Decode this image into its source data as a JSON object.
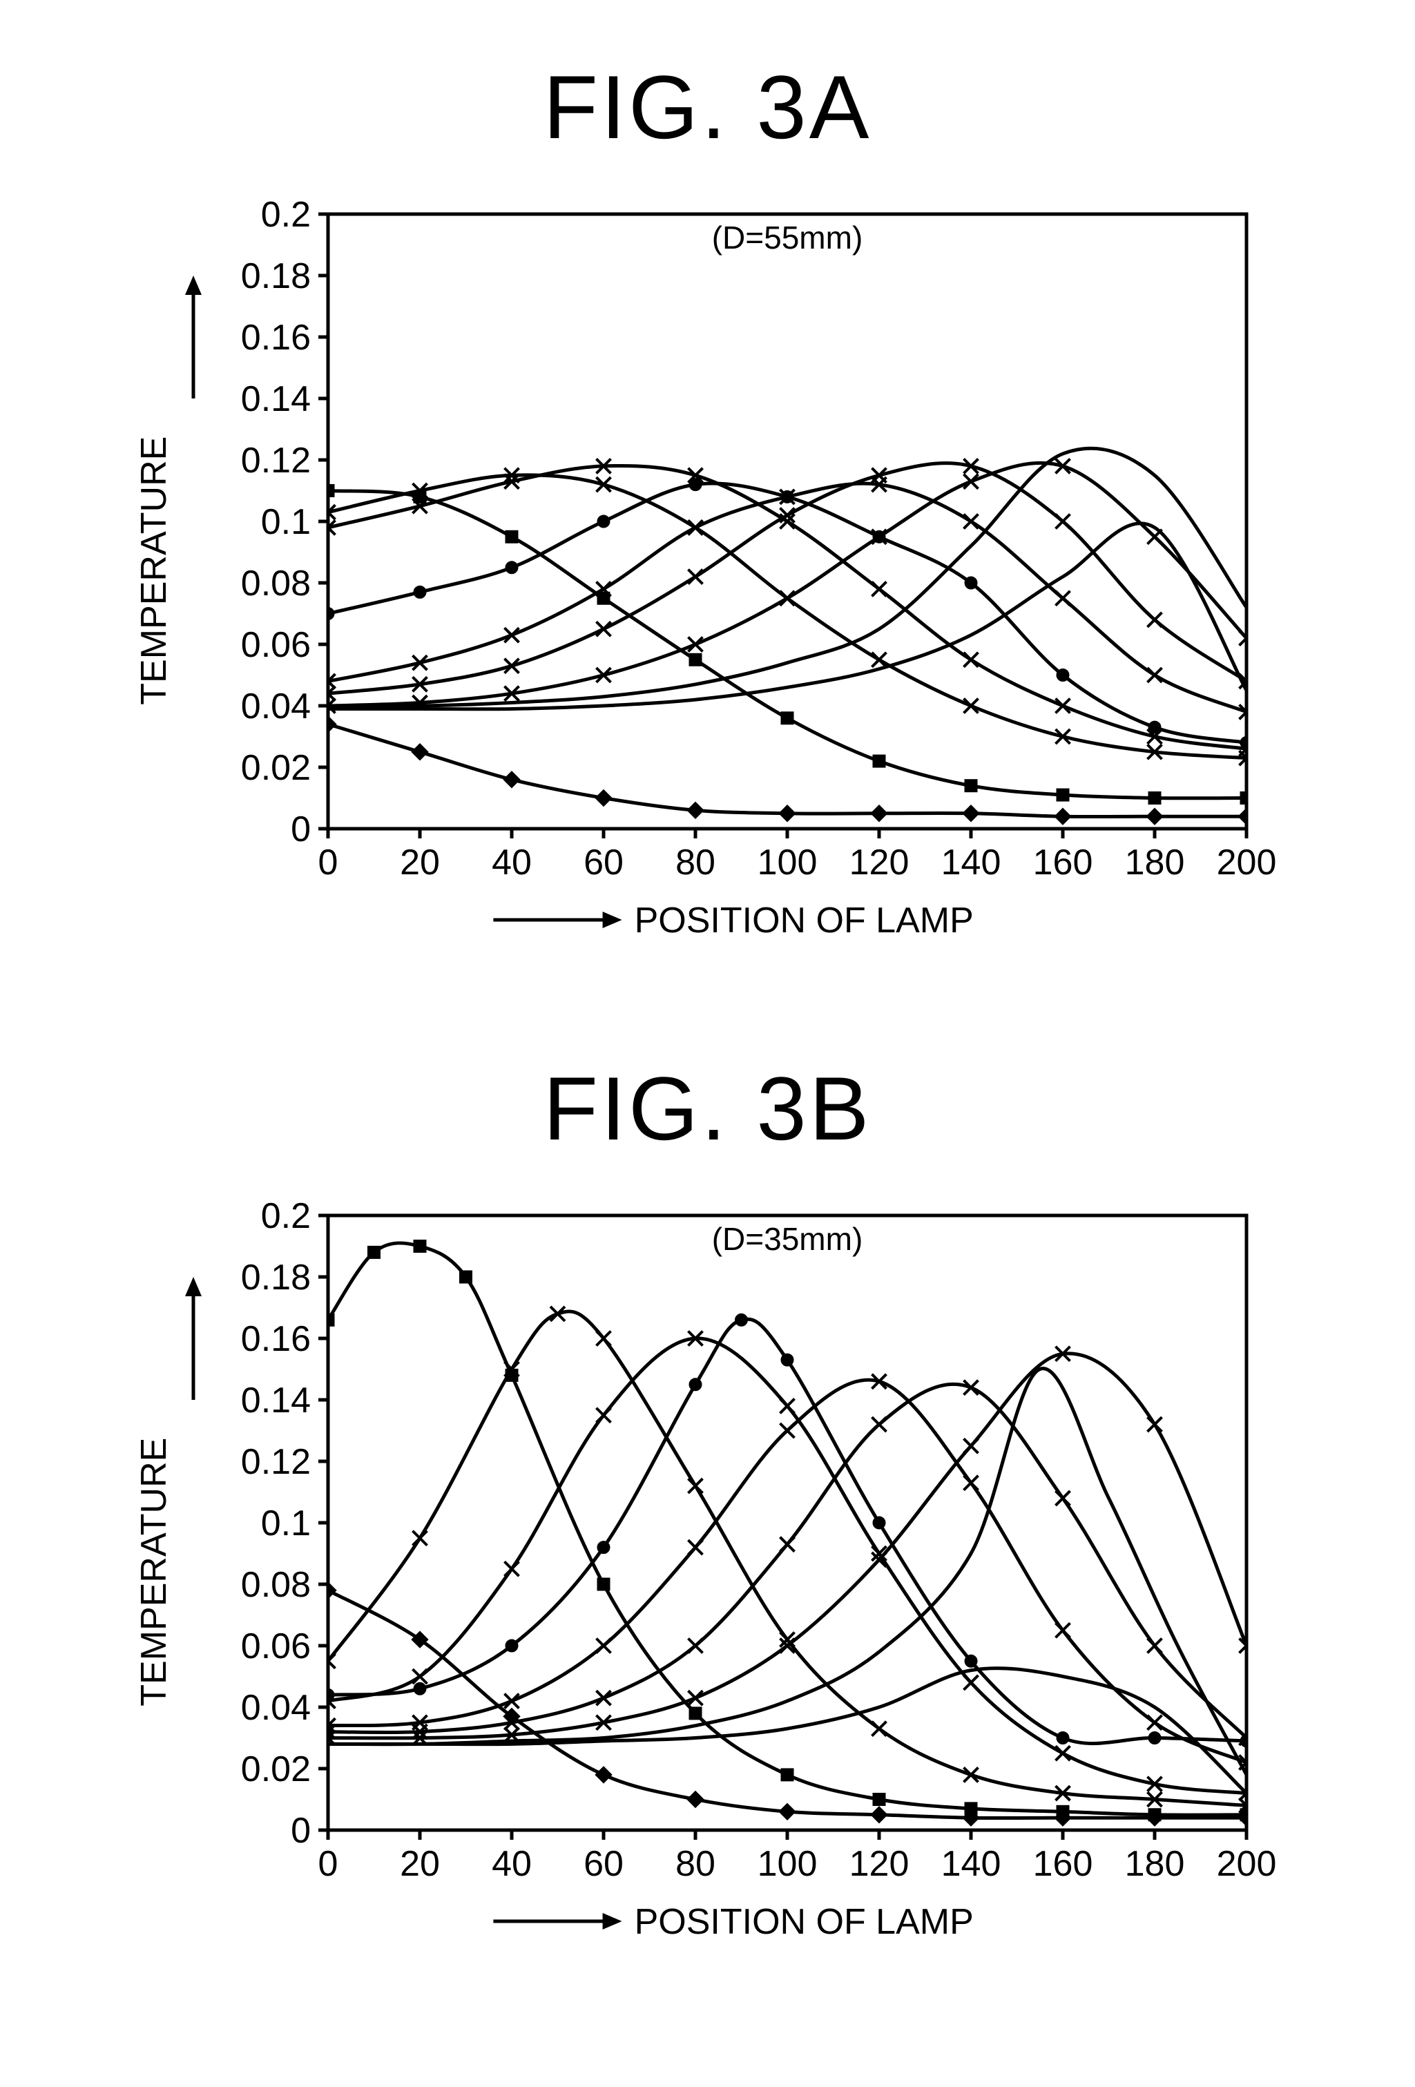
{
  "figures": [
    {
      "id": "fig3a",
      "title": "FIG. 3A",
      "annotation": "(D=55mm)",
      "annotation_fontsize": 46,
      "xlabel": "POSITION OF LAMP",
      "ylabel": "TEMPERATURE",
      "label_fontsize": 52,
      "tick_fontsize": 52,
      "xlim": [
        0,
        200
      ],
      "ylim": [
        0,
        0.2
      ],
      "xtick_step": 20,
      "ytick_step": 0.02,
      "line_color": "#000000",
      "axis_color": "#000000",
      "background_color": "#ffffff",
      "line_width": 5,
      "axis_width": 5,
      "marker_size": 15,
      "series": [
        {
          "marker": "diamond",
          "x": [
            0,
            20,
            40,
            60,
            80,
            100,
            120,
            140,
            160,
            180,
            200
          ],
          "y": [
            0.034,
            0.025,
            0.016,
            0.01,
            0.006,
            0.005,
            0.005,
            0.005,
            0.004,
            0.004,
            0.004
          ]
        },
        {
          "marker": "square",
          "x": [
            0,
            20,
            40,
            60,
            80,
            100,
            120,
            140,
            160,
            180,
            200
          ],
          "y": [
            0.11,
            0.108,
            0.095,
            0.075,
            0.055,
            0.036,
            0.022,
            0.014,
            0.011,
            0.01,
            0.01
          ]
        },
        {
          "marker": "x",
          "x": [
            0,
            20,
            40,
            60,
            80,
            100,
            120,
            140,
            160,
            180,
            200
          ],
          "y": [
            0.103,
            0.11,
            0.115,
            0.112,
            0.098,
            0.075,
            0.055,
            0.04,
            0.03,
            0.025,
            0.023
          ]
        },
        {
          "marker": "x",
          "x": [
            0,
            20,
            40,
            60,
            80,
            100,
            120,
            140,
            160,
            180,
            200
          ],
          "y": [
            0.098,
            0.105,
            0.113,
            0.118,
            0.115,
            0.1,
            0.078,
            0.055,
            0.04,
            0.03,
            0.026
          ]
        },
        {
          "marker": "circle",
          "x": [
            0,
            20,
            40,
            60,
            80,
            100,
            120,
            140,
            160,
            180,
            200
          ],
          "y": [
            0.07,
            0.077,
            0.085,
            0.1,
            0.112,
            0.108,
            0.095,
            0.08,
            0.05,
            0.033,
            0.028
          ]
        },
        {
          "marker": "x",
          "x": [
            0,
            20,
            40,
            60,
            80,
            100,
            120,
            140,
            160,
            180,
            200
          ],
          "y": [
            0.048,
            0.054,
            0.063,
            0.078,
            0.098,
            0.108,
            0.112,
            0.1,
            0.075,
            0.05,
            0.038
          ]
        },
        {
          "marker": "x",
          "x": [
            0,
            20,
            40,
            60,
            80,
            100,
            120,
            140,
            160,
            180,
            200
          ],
          "y": [
            0.044,
            0.047,
            0.053,
            0.065,
            0.082,
            0.102,
            0.115,
            0.118,
            0.1,
            0.068,
            0.048
          ]
        },
        {
          "marker": "x",
          "x": [
            0,
            20,
            40,
            60,
            80,
            100,
            120,
            140,
            160,
            180,
            200
          ],
          "y": [
            0.04,
            0.041,
            0.044,
            0.05,
            0.06,
            0.075,
            0.095,
            0.113,
            0.118,
            0.095,
            0.062
          ]
        },
        {
          "marker": "none",
          "x": [
            0,
            20,
            40,
            60,
            80,
            100,
            120,
            140,
            160,
            180,
            200
          ],
          "y": [
            0.04,
            0.04,
            0.041,
            0.043,
            0.047,
            0.054,
            0.065,
            0.092,
            0.122,
            0.115,
            0.072
          ]
        },
        {
          "marker": "none",
          "x": [
            0,
            20,
            40,
            60,
            80,
            100,
            120,
            140,
            160,
            180,
            200
          ],
          "y": [
            0.039,
            0.039,
            0.039,
            0.04,
            0.042,
            0.046,
            0.052,
            0.063,
            0.082,
            0.098,
            0.045
          ]
        }
      ]
    },
    {
      "id": "fig3b",
      "title": "FIG. 3B",
      "annotation": "(D=35mm)",
      "annotation_fontsize": 46,
      "xlabel": "POSITION OF LAMP",
      "ylabel": "TEMPERATURE",
      "label_fontsize": 52,
      "tick_fontsize": 52,
      "xlim": [
        0,
        200
      ],
      "ylim": [
        0,
        0.2
      ],
      "xtick_step": 20,
      "ytick_step": 0.02,
      "line_color": "#000000",
      "axis_color": "#000000",
      "background_color": "#ffffff",
      "line_width": 5,
      "axis_width": 5,
      "marker_size": 15,
      "series": [
        {
          "marker": "diamond",
          "x": [
            0,
            20,
            40,
            60,
            80,
            100,
            120,
            140,
            160,
            180,
            200
          ],
          "y": [
            0.078,
            0.062,
            0.037,
            0.018,
            0.01,
            0.006,
            0.005,
            0.004,
            0.004,
            0.004,
            0.004
          ]
        },
        {
          "marker": "square",
          "x": [
            0,
            10,
            20,
            30,
            40,
            60,
            80,
            100,
            120,
            140,
            160,
            180,
            200
          ],
          "y": [
            0.166,
            0.188,
            0.19,
            0.18,
            0.148,
            0.08,
            0.038,
            0.018,
            0.01,
            0.007,
            0.006,
            0.005,
            0.005
          ]
        },
        {
          "marker": "x",
          "x": [
            0,
            20,
            40,
            50,
            60,
            80,
            100,
            120,
            140,
            160,
            180,
            200
          ],
          "y": [
            0.055,
            0.095,
            0.15,
            0.168,
            0.16,
            0.112,
            0.062,
            0.033,
            0.018,
            0.012,
            0.01,
            0.008
          ]
        },
        {
          "marker": "x",
          "x": [
            0,
            20,
            40,
            60,
            80,
            100,
            120,
            140,
            160,
            180,
            200
          ],
          "y": [
            0.042,
            0.05,
            0.085,
            0.135,
            0.16,
            0.138,
            0.09,
            0.048,
            0.025,
            0.015,
            0.012
          ]
        },
        {
          "marker": "circle",
          "x": [
            0,
            20,
            40,
            60,
            80,
            90,
            100,
            120,
            140,
            160,
            180,
            200
          ],
          "y": [
            0.044,
            0.046,
            0.06,
            0.092,
            0.145,
            0.166,
            0.153,
            0.1,
            0.055,
            0.03,
            0.03,
            0.029
          ]
        },
        {
          "marker": "x",
          "x": [
            0,
            20,
            40,
            60,
            80,
            100,
            120,
            140,
            160,
            180,
            200
          ],
          "y": [
            0.034,
            0.035,
            0.042,
            0.06,
            0.092,
            0.13,
            0.146,
            0.113,
            0.065,
            0.035,
            0.022
          ]
        },
        {
          "marker": "x",
          "x": [
            0,
            20,
            40,
            60,
            80,
            100,
            120,
            140,
            160,
            180,
            200
          ],
          "y": [
            0.032,
            0.032,
            0.035,
            0.043,
            0.06,
            0.093,
            0.132,
            0.144,
            0.108,
            0.06,
            0.03
          ]
        },
        {
          "marker": "x",
          "x": [
            0,
            20,
            40,
            60,
            80,
            100,
            120,
            140,
            160,
            180,
            200
          ],
          "y": [
            0.03,
            0.03,
            0.031,
            0.035,
            0.043,
            0.06,
            0.088,
            0.125,
            0.155,
            0.132,
            0.06
          ]
        },
        {
          "marker": "none",
          "x": [
            0,
            20,
            40,
            60,
            80,
            100,
            120,
            140,
            155,
            170,
            185,
            200
          ],
          "y": [
            0.028,
            0.028,
            0.029,
            0.03,
            0.034,
            0.042,
            0.058,
            0.09,
            0.15,
            0.108,
            0.06,
            0.018
          ]
        },
        {
          "marker": "none",
          "x": [
            0,
            20,
            40,
            60,
            80,
            100,
            120,
            140,
            160,
            180,
            200
          ],
          "y": [
            0.028,
            0.028,
            0.028,
            0.029,
            0.03,
            0.033,
            0.04,
            0.052,
            0.05,
            0.04,
            0.012
          ]
        }
      ]
    }
  ]
}
